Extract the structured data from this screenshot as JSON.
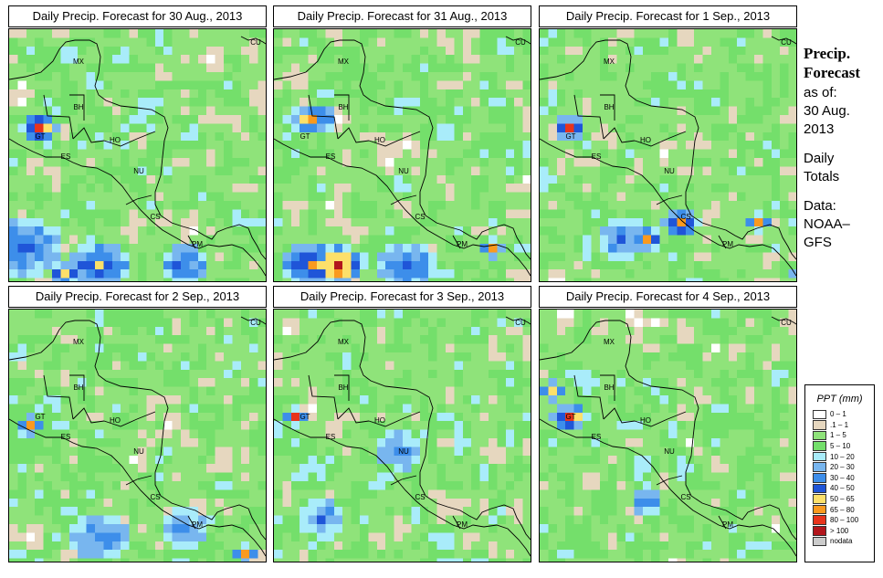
{
  "panels": [
    {
      "title": "Daily Precip. Forecast for  30 Aug., 2013"
    },
    {
      "title": "Daily Precip. Forecast for  31 Aug., 2013"
    },
    {
      "title": "Daily Precip. Forecast for  1 Sep., 2013"
    },
    {
      "title": "Daily Precip. Forecast for  2 Sep., 2013"
    },
    {
      "title": "Daily Precip. Forecast for  3 Sep., 2013"
    },
    {
      "title": "Daily Precip. Forecast for  4 Sep., 2013"
    }
  ],
  "country_labels": [
    "CU",
    "MX",
    "BH",
    "GT",
    "HO",
    "ES",
    "NU",
    "CS",
    "PM"
  ],
  "sidebar": {
    "line1": "Precip.",
    "line2": "Forecast",
    "line3": "as of:",
    "line4": "30 Aug.",
    "line5": "2013",
    "line6": "Daily",
    "line7": "Totals",
    "line8": "Data:",
    "line9": "NOAA–",
    "line10": "GFS"
  },
  "legend": {
    "title": "PPT (mm)",
    "items": [
      {
        "label": "0 – 1",
        "color": "#ffffff"
      },
      {
        "label": ".1 – 1",
        "color": "#e6d7bf"
      },
      {
        "label": "1 – 5",
        "color": "#8fe37a"
      },
      {
        "label": "5 – 10",
        "color": "#74df6b"
      },
      {
        "label": "10 – 20",
        "color": "#a9ecfa"
      },
      {
        "label": "20 – 30",
        "color": "#78b6ef"
      },
      {
        "label": "30 – 40",
        "color": "#3d8eea"
      },
      {
        "label": "40 – 50",
        "color": "#1f55d8"
      },
      {
        "label": "50 – 65",
        "color": "#fde06a"
      },
      {
        "label": "65 – 80",
        "color": "#fa9a1f"
      },
      {
        "label": "80 – 100",
        "color": "#e8341c"
      },
      {
        "label": "> 100",
        "color": "#b2161c"
      },
      {
        "label": "nodata",
        "color": "#cccccc"
      }
    ]
  }
}
